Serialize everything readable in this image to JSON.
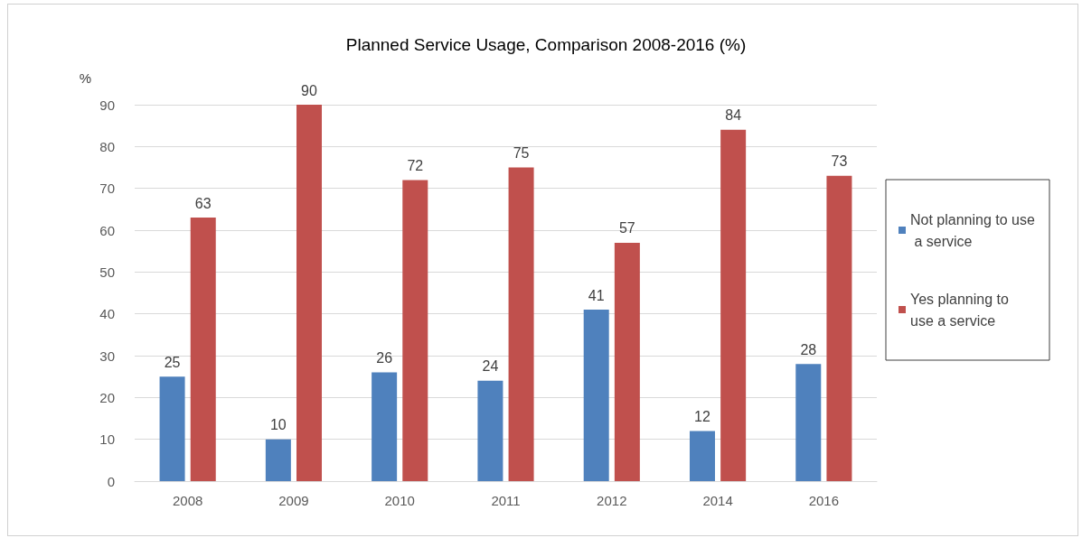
{
  "chart_data": {
    "type": "bar",
    "title": "Planned Service Usage, Comparison 2008-2016 (%)",
    "ylabel": "%",
    "categories": [
      "2008",
      "2009",
      "2010",
      "2011",
      "2012",
      "2014",
      "2016"
    ],
    "series": [
      {
        "name": "Not planning to use a service",
        "color": "#4f81bd",
        "values": [
          25,
          10,
          26,
          24,
          41,
          12,
          28
        ]
      },
      {
        "name": "Yes planning to use a service",
        "color": "#c0504d",
        "values": [
          63,
          90,
          72,
          75,
          57,
          84,
          73
        ]
      }
    ],
    "ylim": [
      0,
      90
    ],
    "yticks": [
      0,
      10,
      20,
      30,
      40,
      50,
      60,
      70,
      80,
      90
    ],
    "grid": "y",
    "legend": "right",
    "data_labels": true
  }
}
